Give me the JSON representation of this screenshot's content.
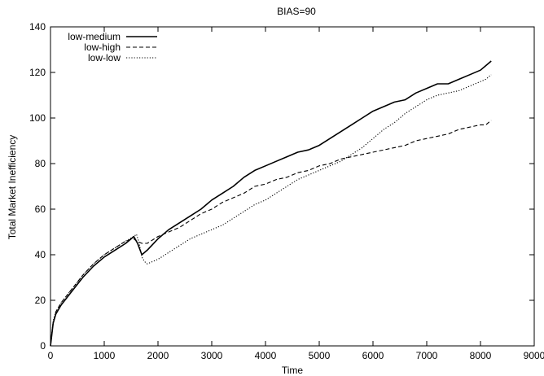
{
  "chart_data": {
    "type": "line",
    "title": "BIAS=90",
    "xlabel": "Time",
    "ylabel": "Total Market Inefficiency",
    "xlim": [
      0,
      9000
    ],
    "ylim": [
      0,
      140
    ],
    "xticks": [
      0,
      1000,
      2000,
      3000,
      4000,
      5000,
      6000,
      7000,
      8000,
      9000
    ],
    "yticks": [
      0,
      20,
      40,
      60,
      80,
      100,
      120,
      140
    ],
    "grid": false,
    "legend_position": "top-left",
    "series": [
      {
        "name": "low-medium",
        "style": "solid",
        "points": [
          [
            0,
            0
          ],
          [
            50,
            10
          ],
          [
            100,
            14
          ],
          [
            200,
            18
          ],
          [
            400,
            24
          ],
          [
            600,
            30
          ],
          [
            800,
            35
          ],
          [
            1000,
            39
          ],
          [
            1200,
            42
          ],
          [
            1400,
            45
          ],
          [
            1550,
            48
          ],
          [
            1620,
            45
          ],
          [
            1700,
            40
          ],
          [
            1800,
            42
          ],
          [
            2000,
            47
          ],
          [
            2200,
            51
          ],
          [
            2400,
            54
          ],
          [
            2600,
            57
          ],
          [
            2800,
            60
          ],
          [
            3000,
            64
          ],
          [
            3200,
            67
          ],
          [
            3400,
            70
          ],
          [
            3600,
            74
          ],
          [
            3800,
            77
          ],
          [
            4000,
            79
          ],
          [
            4200,
            81
          ],
          [
            4400,
            83
          ],
          [
            4600,
            85
          ],
          [
            4800,
            86
          ],
          [
            5000,
            88
          ],
          [
            5200,
            91
          ],
          [
            5400,
            94
          ],
          [
            5600,
            97
          ],
          [
            5800,
            100
          ],
          [
            6000,
            103
          ],
          [
            6200,
            105
          ],
          [
            6400,
            107
          ],
          [
            6600,
            108
          ],
          [
            6800,
            111
          ],
          [
            7000,
            113
          ],
          [
            7200,
            115
          ],
          [
            7400,
            115
          ],
          [
            7600,
            117
          ],
          [
            7800,
            119
          ],
          [
            8000,
            121
          ],
          [
            8100,
            123
          ],
          [
            8200,
            125
          ]
        ]
      },
      {
        "name": "low-high",
        "style": "dashed",
        "points": [
          [
            0,
            0
          ],
          [
            50,
            10
          ],
          [
            100,
            15
          ],
          [
            200,
            19
          ],
          [
            400,
            25
          ],
          [
            600,
            31
          ],
          [
            800,
            36
          ],
          [
            1000,
            40
          ],
          [
            1200,
            43
          ],
          [
            1400,
            46
          ],
          [
            1550,
            47
          ],
          [
            1600,
            46
          ],
          [
            1700,
            45
          ],
          [
            1800,
            45
          ],
          [
            2000,
            48
          ],
          [
            2200,
            50
          ],
          [
            2400,
            52
          ],
          [
            2600,
            55
          ],
          [
            2800,
            58
          ],
          [
            3000,
            60
          ],
          [
            3200,
            63
          ],
          [
            3400,
            65
          ],
          [
            3600,
            67
          ],
          [
            3800,
            70
          ],
          [
            4000,
            71
          ],
          [
            4200,
            73
          ],
          [
            4400,
            74
          ],
          [
            4600,
            76
          ],
          [
            4800,
            77
          ],
          [
            5000,
            79
          ],
          [
            5200,
            80
          ],
          [
            5400,
            82
          ],
          [
            5600,
            83
          ],
          [
            5800,
            84
          ],
          [
            6000,
            85
          ],
          [
            6200,
            86
          ],
          [
            6400,
            87
          ],
          [
            6600,
            88
          ],
          [
            6800,
            90
          ],
          [
            7000,
            91
          ],
          [
            7200,
            92
          ],
          [
            7400,
            93
          ],
          [
            7600,
            95
          ],
          [
            7800,
            96
          ],
          [
            8000,
            97
          ],
          [
            8100,
            97
          ],
          [
            8200,
            99
          ]
        ]
      },
      {
        "name": "low-low",
        "style": "dotted",
        "points": [
          [
            0,
            0
          ],
          [
            50,
            11
          ],
          [
            100,
            15
          ],
          [
            200,
            19
          ],
          [
            400,
            25
          ],
          [
            600,
            31
          ],
          [
            800,
            36
          ],
          [
            1000,
            40
          ],
          [
            1200,
            43
          ],
          [
            1400,
            46
          ],
          [
            1550,
            48
          ],
          [
            1600,
            49
          ],
          [
            1650,
            45
          ],
          [
            1700,
            39
          ],
          [
            1750,
            37
          ],
          [
            1800,
            36
          ],
          [
            1900,
            37
          ],
          [
            2000,
            38
          ],
          [
            2200,
            41
          ],
          [
            2400,
            44
          ],
          [
            2600,
            47
          ],
          [
            2800,
            49
          ],
          [
            3000,
            51
          ],
          [
            3200,
            53
          ],
          [
            3400,
            56
          ],
          [
            3600,
            59
          ],
          [
            3800,
            62
          ],
          [
            4000,
            64
          ],
          [
            4200,
            67
          ],
          [
            4400,
            70
          ],
          [
            4600,
            73
          ],
          [
            4800,
            75
          ],
          [
            5000,
            77
          ],
          [
            5200,
            79
          ],
          [
            5400,
            81
          ],
          [
            5600,
            84
          ],
          [
            5800,
            87
          ],
          [
            6000,
            91
          ],
          [
            6200,
            95
          ],
          [
            6400,
            98
          ],
          [
            6600,
            102
          ],
          [
            6800,
            105
          ],
          [
            7000,
            108
          ],
          [
            7200,
            110
          ],
          [
            7400,
            111
          ],
          [
            7600,
            112
          ],
          [
            7800,
            114
          ],
          [
            8000,
            116
          ],
          [
            8100,
            117
          ],
          [
            8200,
            119
          ]
        ]
      }
    ]
  }
}
